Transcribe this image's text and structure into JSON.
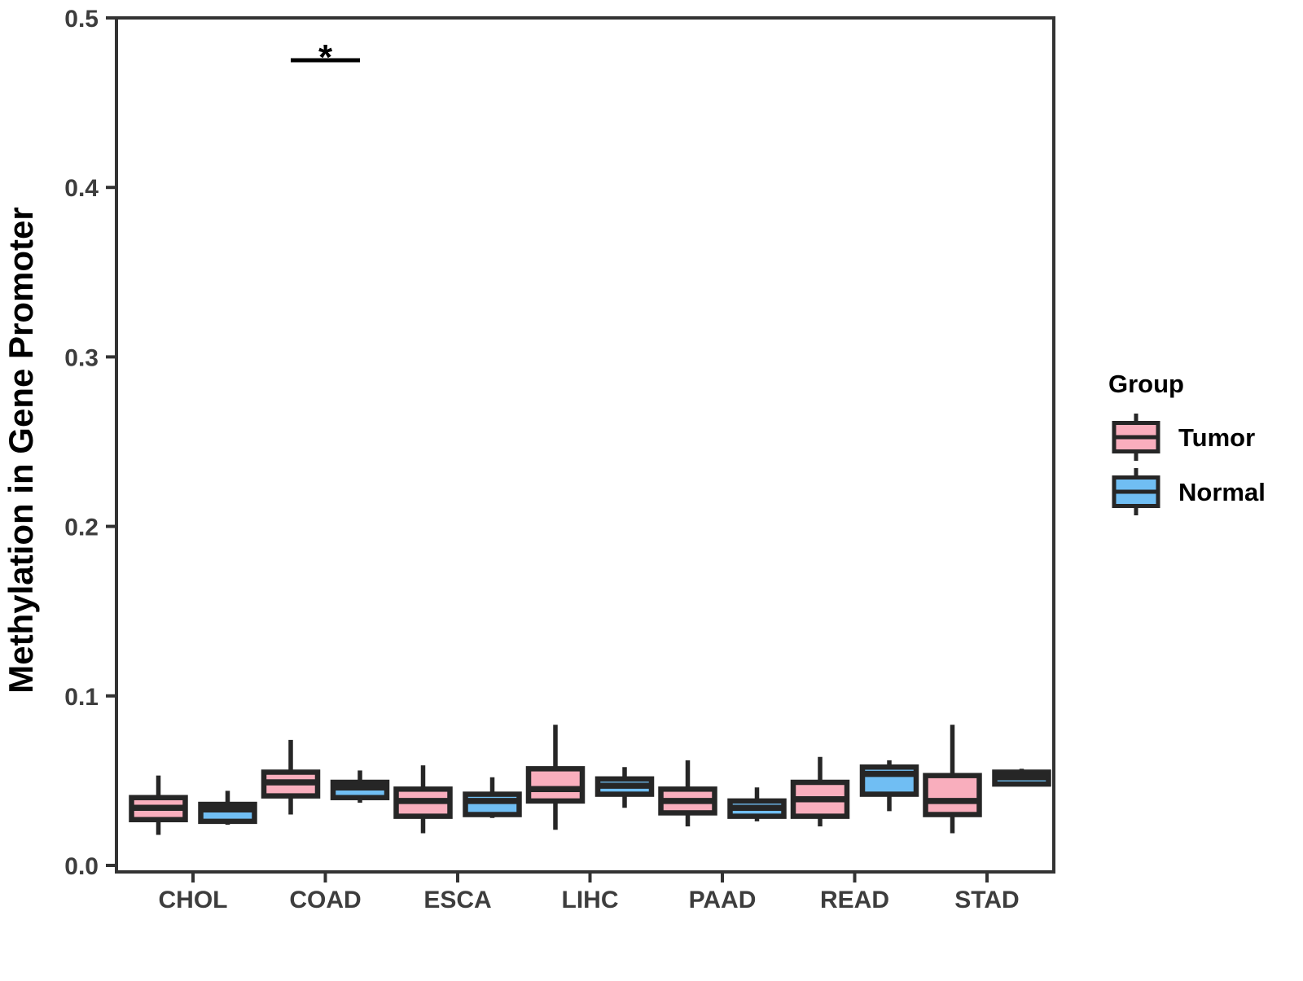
{
  "chart_data": {
    "type": "grouped_boxplot",
    "title": "",
    "xlabel": "",
    "ylabel": "Methylation in Gene Promoter",
    "ylim": [
      0.0,
      0.5
    ],
    "yticks": [
      0.0,
      0.1,
      0.2,
      0.3,
      0.4,
      0.5
    ],
    "ytick_labels": [
      "0.0",
      "0.1",
      "0.2",
      "0.3",
      "0.4",
      "0.5"
    ],
    "categories": [
      "CHOL",
      "COAD",
      "ESCA",
      "LIHC",
      "PAAD",
      "READ",
      "STAD"
    ],
    "grid": false,
    "series": [
      {
        "name": "Tumor",
        "color": "#F9AEBD",
        "boxes": [
          {
            "whislo": 0.018,
            "q1": 0.027,
            "med": 0.034,
            "q3": 0.04,
            "whishi": 0.053
          },
          {
            "whislo": 0.03,
            "q1": 0.041,
            "med": 0.049,
            "q3": 0.055,
            "whishi": 0.074
          },
          {
            "whislo": 0.019,
            "q1": 0.029,
            "med": 0.038,
            "q3": 0.045,
            "whishi": 0.059
          },
          {
            "whislo": 0.021,
            "q1": 0.038,
            "med": 0.045,
            "q3": 0.057,
            "whishi": 0.083
          },
          {
            "whislo": 0.023,
            "q1": 0.031,
            "med": 0.038,
            "q3": 0.045,
            "whishi": 0.062
          },
          {
            "whislo": 0.023,
            "q1": 0.029,
            "med": 0.039,
            "q3": 0.049,
            "whishi": 0.064
          },
          {
            "whislo": 0.019,
            "q1": 0.03,
            "med": 0.038,
            "q3": 0.053,
            "whishi": 0.083
          }
        ]
      },
      {
        "name": "Normal",
        "color": "#70BEF3",
        "boxes": [
          {
            "whislo": 0.024,
            "q1": 0.026,
            "med": 0.033,
            "q3": 0.036,
            "whishi": 0.044
          },
          {
            "whislo": 0.037,
            "q1": 0.04,
            "med": 0.046,
            "q3": 0.049,
            "whishi": 0.056
          },
          {
            "whislo": 0.028,
            "q1": 0.03,
            "med": 0.038,
            "q3": 0.042,
            "whishi": 0.052
          },
          {
            "whislo": 0.034,
            "q1": 0.042,
            "med": 0.047,
            "q3": 0.051,
            "whishi": 0.058
          },
          {
            "whislo": 0.026,
            "q1": 0.029,
            "med": 0.034,
            "q3": 0.038,
            "whishi": 0.046
          },
          {
            "whislo": 0.032,
            "q1": 0.042,
            "med": 0.054,
            "q3": 0.058,
            "whishi": 0.062
          },
          {
            "whislo": 0.047,
            "q1": 0.048,
            "med": 0.052,
            "q3": 0.055,
            "whishi": 0.057
          }
        ]
      }
    ],
    "significance": [
      {
        "category": "COAD",
        "label": "*",
        "y": 0.475
      }
    ],
    "legend": {
      "title": "Group",
      "position": "right",
      "entries": [
        "Tumor",
        "Normal"
      ]
    },
    "style_colors": {
      "box_stroke": "#262626",
      "panel_border": "#333333",
      "tick_color": "#333333",
      "significance_color": "#000000"
    }
  }
}
